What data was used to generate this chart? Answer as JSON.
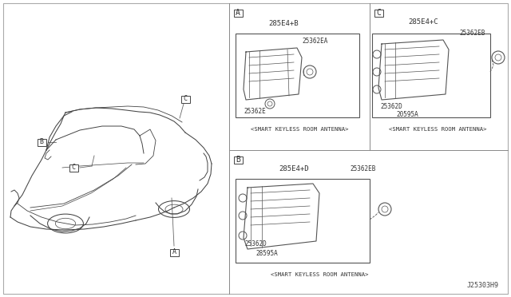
{
  "bg_color": "#ffffff",
  "doc_number": "J25303H9",
  "part_label_A_top": "285E4+B",
  "part_label_A_inner1": "25362EA",
  "part_label_A_inner2": "25362E",
  "caption_A": "<SMART KEYLESS ROOM ANTENNA>",
  "part_label_B_top": "285E4+D",
  "part_label_B_right": "25362EB",
  "part_label_B_inner1": "25362D",
  "part_label_B_inner2": "28595A",
  "caption_B": "<SMART KEYLESS ROOM ANTENNA>",
  "part_label_C_top": "285E4+C",
  "part_label_C_right": "25362EB",
  "part_label_C_inner1": "25362D",
  "part_label_C_inner2": "20595A",
  "caption_C": "<SMART KEYLESS ROOM ANTENNA>"
}
